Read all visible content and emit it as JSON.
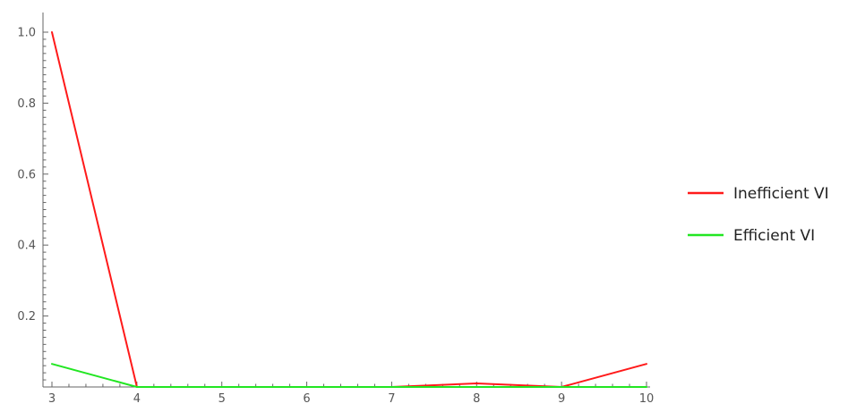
{
  "chart_data": {
    "type": "line",
    "x": [
      3,
      4,
      5,
      6,
      7,
      8,
      9,
      10
    ],
    "xlim": [
      3,
      10
    ],
    "ylim": [
      0,
      1.05
    ],
    "x_ticks": [
      "3",
      "4",
      "5",
      "6",
      "7",
      "8",
      "9",
      "10"
    ],
    "y_ticks": [
      "0.2",
      "0.4",
      "0.6",
      "0.8",
      "1.0"
    ],
    "grid": false,
    "legend_position": "right",
    "series": [
      {
        "name": "Inefficient VI",
        "color": "#ff1a1a",
        "values": [
          1.0,
          0.0,
          0.0,
          0.0,
          0.0,
          0.01,
          0.0,
          0.065
        ]
      },
      {
        "name": "Efficient VI",
        "color": "#22e622",
        "values": [
          0.065,
          0.0,
          0.0,
          0.0,
          0.0,
          0.0,
          0.0,
          0.0
        ]
      }
    ]
  }
}
